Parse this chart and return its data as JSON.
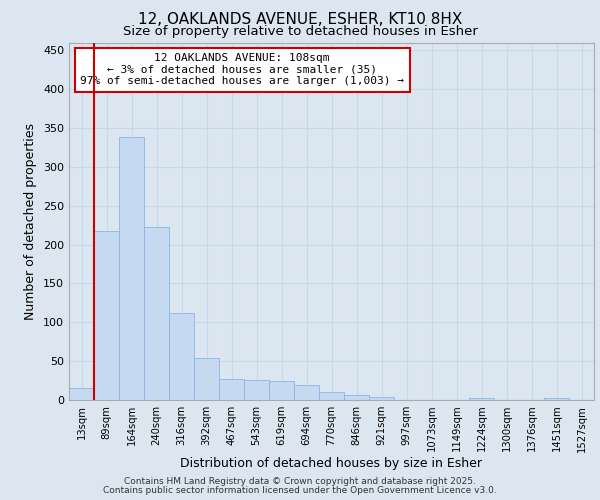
{
  "title_line1": "12, OAKLANDS AVENUE, ESHER, KT10 8HX",
  "title_line2": "Size of property relative to detached houses in Esher",
  "xlabel": "Distribution of detached houses by size in Esher",
  "ylabel": "Number of detached properties",
  "categories": [
    "13sqm",
    "89sqm",
    "164sqm",
    "240sqm",
    "316sqm",
    "392sqm",
    "467sqm",
    "543sqm",
    "619sqm",
    "694sqm",
    "770sqm",
    "846sqm",
    "921sqm",
    "997sqm",
    "1073sqm",
    "1149sqm",
    "1224sqm",
    "1300sqm",
    "1376sqm",
    "1451sqm",
    "1527sqm"
  ],
  "values": [
    15,
    218,
    338,
    222,
    112,
    54,
    27,
    26,
    25,
    19,
    10,
    6,
    4,
    0,
    0,
    0,
    2,
    0,
    0,
    2,
    0
  ],
  "bar_color": "#c5d9f1",
  "bar_edge_color": "#8db4e2",
  "grid_color": "#c8d8eb",
  "background_color": "#dce6f1",
  "plot_bg_color": "#dce6f1",
  "vline_x": 0.5,
  "vline_color": "#cc0000",
  "annotation_text": "12 OAKLANDS AVENUE: 108sqm\n← 3% of detached houses are smaller (35)\n97% of semi-detached houses are larger (1,003) →",
  "annotation_box_color": "#cc0000",
  "ylim": [
    0,
    460
  ],
  "yticks": [
    0,
    50,
    100,
    150,
    200,
    250,
    300,
    350,
    400,
    450
  ],
  "footer_line1": "Contains HM Land Registry data © Crown copyright and database right 2025.",
  "footer_line2": "Contains public sector information licensed under the Open Government Licence v3.0."
}
